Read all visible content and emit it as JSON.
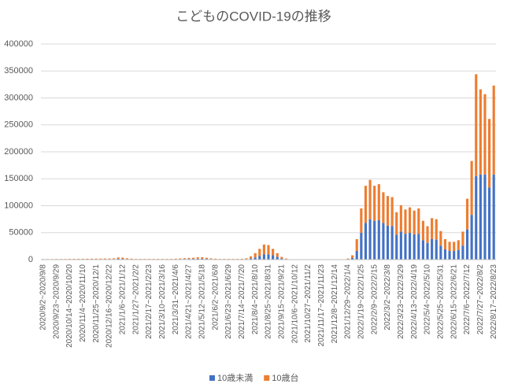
{
  "chart_data": {
    "type": "bar",
    "stacked": true,
    "title": "こどものCOVID-19の推移",
    "categories": [
      "2020/9/2~2020/9/8",
      null,
      null,
      "2020/9/23~2020/9/29",
      null,
      null,
      "2020/10/14~2020/10/20",
      null,
      null,
      "2020/11/4~2020/11/10",
      null,
      null,
      "2020/11/25~2020/12/1",
      null,
      null,
      "2020/12/16~2020/12/22",
      null,
      null,
      "2021/1/6~2021/1/12",
      null,
      null,
      "2021/1/27~2021/2/2",
      null,
      null,
      "2021/2/17~2021/2/23",
      null,
      null,
      "2021/3/10~2021/3/16",
      null,
      null,
      "2021/3/31~2021/4/6",
      null,
      null,
      "2021/4/21~2021/4/27",
      null,
      null,
      "2021/5/12~2021/5/18",
      null,
      null,
      "2021/6/2~2021/6/8",
      null,
      null,
      "2021/6/23~2021/6/29",
      null,
      null,
      "2021/7/14~2021/7/20",
      null,
      null,
      "2021/8/4~2021/8/10",
      null,
      null,
      "2021/8/25~2021/8/31",
      null,
      null,
      "2021/9/15~2021/9/21",
      null,
      null,
      "2021/10/6~2021/10/12",
      null,
      null,
      "2021/10/27~2021/11/2",
      null,
      null,
      "2021/11/17~2021/11/23",
      null,
      null,
      "2021/12/8~2021/12/14",
      null,
      null,
      "2021/12/29~2022/1/4",
      null,
      null,
      "2022/1/19~2022/1/25",
      null,
      null,
      "2022/2/9~2022/2/15",
      null,
      null,
      "2022/3/2~2022/3/8",
      null,
      null,
      "2022/3/23~2022/3/29",
      null,
      null,
      "2022/4/13~2022/4/19",
      null,
      null,
      "2022/5/4~2022/5/10",
      null,
      null,
      "2022/5/25~2022/5/31",
      null,
      null,
      "2022/6/15~2022/6/21",
      null,
      null,
      "2022/7/6~2022/7/12",
      null,
      null,
      "2022/7/27~2022/8/2",
      null,
      null,
      "2022/8/17~2022/8/23"
    ],
    "series": [
      {
        "name": "10歳未満",
        "color": "#4472c4",
        "values": [
          400,
          400,
          400,
          500,
          500,
          500,
          500,
          600,
          600,
          600,
          700,
          700,
          800,
          800,
          900,
          900,
          1000,
          1500,
          1400,
          1000,
          700,
          500,
          500,
          500,
          500,
          500,
          500,
          500,
          500,
          500,
          700,
          900,
          1100,
          1300,
          1400,
          1700,
          1800,
          1400,
          1000,
          700,
          500,
          500,
          500,
          500,
          500,
          600,
          900,
          2000,
          4000,
          7000,
          10000,
          10000,
          8000,
          5000,
          2000,
          800,
          300,
          300,
          300,
          300,
          300,
          300,
          300,
          300,
          300,
          300,
          300,
          300,
          300,
          700,
          3000,
          16000,
          50000,
          68000,
          75000,
          72000,
          73000,
          68000,
          63000,
          62000,
          46000,
          52000,
          48000,
          50000,
          47000,
          48000,
          36000,
          31000,
          38000,
          37000,
          26000,
          19000,
          16000,
          16000,
          18000,
          26000,
          56000,
          83000,
          155000,
          158000,
          158000,
          134000,
          158000
        ]
      },
      {
        "name": "10歳台",
        "color": "#ed7d31",
        "values": [
          600,
          600,
          600,
          700,
          700,
          700,
          800,
          800,
          900,
          900,
          1000,
          1000,
          1100,
          1100,
          1200,
          1200,
          1400,
          2500,
          2300,
          1600,
          1100,
          800,
          800,
          800,
          800,
          800,
          800,
          800,
          800,
          800,
          1000,
          1300,
          1600,
          1800,
          2000,
          2600,
          2700,
          2000,
          1400,
          1000,
          800,
          800,
          800,
          800,
          800,
          1000,
          1600,
          4000,
          8000,
          13000,
          18000,
          17000,
          12000,
          7000,
          3000,
          1200,
          300,
          300,
          300,
          300,
          300,
          300,
          300,
          300,
          300,
          300,
          300,
          300,
          300,
          1300,
          5000,
          22000,
          45000,
          69000,
          73000,
          65000,
          67000,
          57000,
          55000,
          54000,
          42000,
          49000,
          45000,
          47000,
          44000,
          47000,
          36000,
          31000,
          39000,
          38000,
          27000,
          19000,
          17000,
          17000,
          18000,
          26000,
          57000,
          100000,
          189000,
          158000,
          149000,
          127000,
          165000
        ]
      }
    ],
    "ylim": [
      0,
      400000
    ],
    "yticks": [
      0,
      50000,
      100000,
      150000,
      200000,
      250000,
      300000,
      350000,
      400000
    ],
    "grid": true,
    "legend": "bottom"
  }
}
